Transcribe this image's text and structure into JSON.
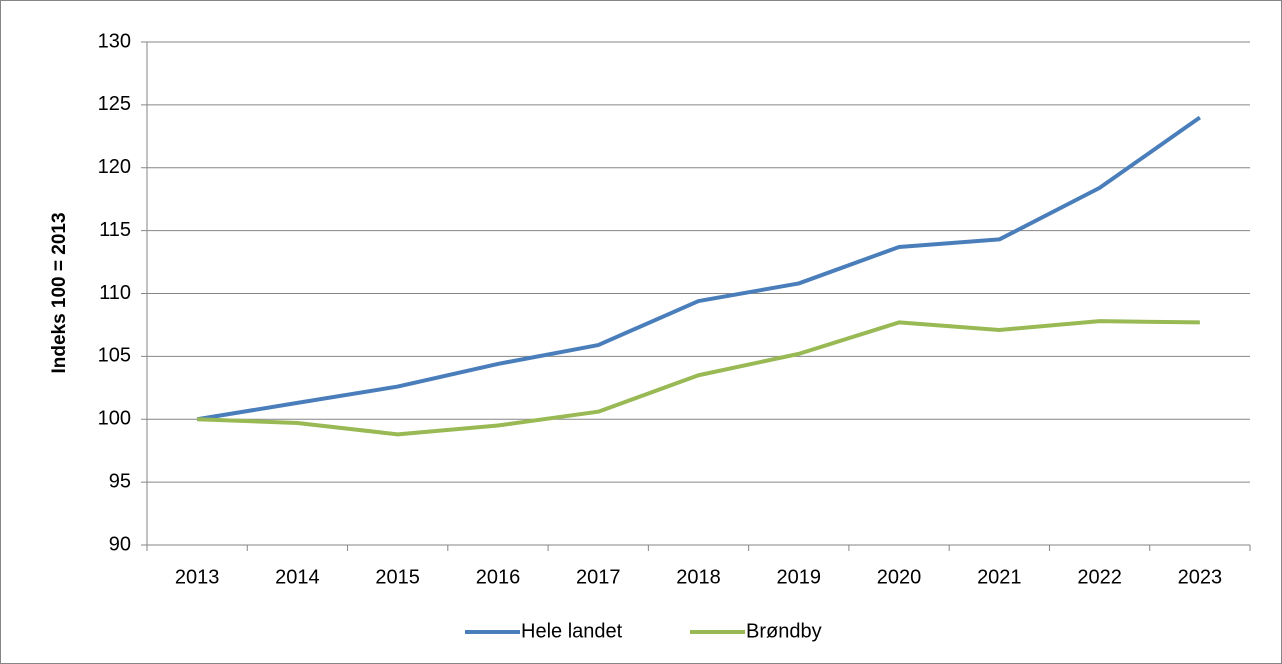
{
  "chart_data": {
    "type": "line",
    "y_label": "Indeks 100 = 2013",
    "categories": [
      "2013",
      "2014",
      "2015",
      "2016",
      "2017",
      "2018",
      "2019",
      "2020",
      "2021",
      "2022",
      "2023"
    ],
    "series": [
      {
        "name": "Hele landet",
        "color": "#4a7ebb",
        "values": [
          100,
          101.3,
          102.6,
          104.4,
          105.9,
          109.4,
          110.8,
          113.7,
          114.3,
          118.4,
          124.0
        ]
      },
      {
        "name": "Brøndby",
        "color": "#98b954",
        "values": [
          100,
          99.7,
          98.8,
          99.5,
          100.6,
          103.5,
          105.2,
          107.7,
          107.1,
          107.8,
          107.7
        ]
      }
    ],
    "ylim": [
      90,
      130
    ],
    "yticks": [
      90,
      95,
      100,
      105,
      110,
      115,
      120,
      125,
      130
    ],
    "grid": true,
    "legend": "bottom"
  }
}
